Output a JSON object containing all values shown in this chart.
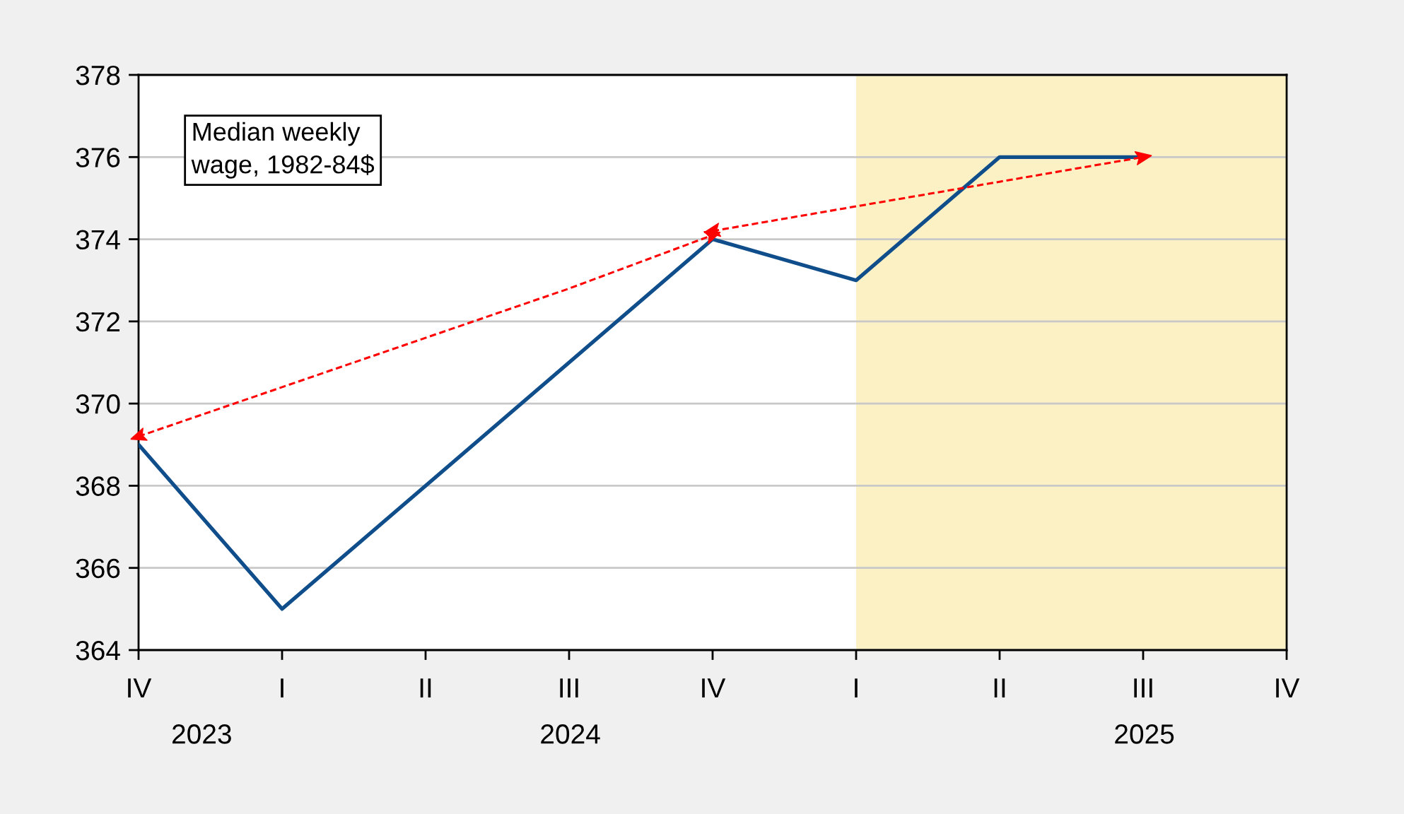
{
  "chart_data": {
    "type": "line",
    "categories": [
      "IV",
      "I",
      "II",
      "III",
      "IV",
      "I",
      "II",
      "III",
      "IV"
    ],
    "series": [
      {
        "color": "#104e8b",
        "values": [
          369,
          365,
          368,
          371,
          374,
          373,
          376,
          376,
          null
        ]
      },
      {
        "type": "line",
        "values": [
          369.2,
          370.4,
          371.6,
          372.8,
          374.1,
          null,
          null,
          null,
          null
        ],
        "color": "#ff0000",
        "line_style": "dashed"
      },
      {
        "type": "line",
        "values": [
          null,
          null,
          null,
          null,
          374.2,
          374.8,
          375.4,
          376,
          null
        ],
        "color": "#ff0000",
        "line_style": "dashed"
      }
    ],
    "ylim": [
      364,
      378
    ],
    "yticks": [
      364,
      366,
      368,
      370,
      372,
      374,
      376,
      378
    ],
    "grid": "y",
    "annotations": [
      "Median weekly\nwage, 1982-84$",
      "2023",
      "2024",
      "2025"
    ]
  }
}
